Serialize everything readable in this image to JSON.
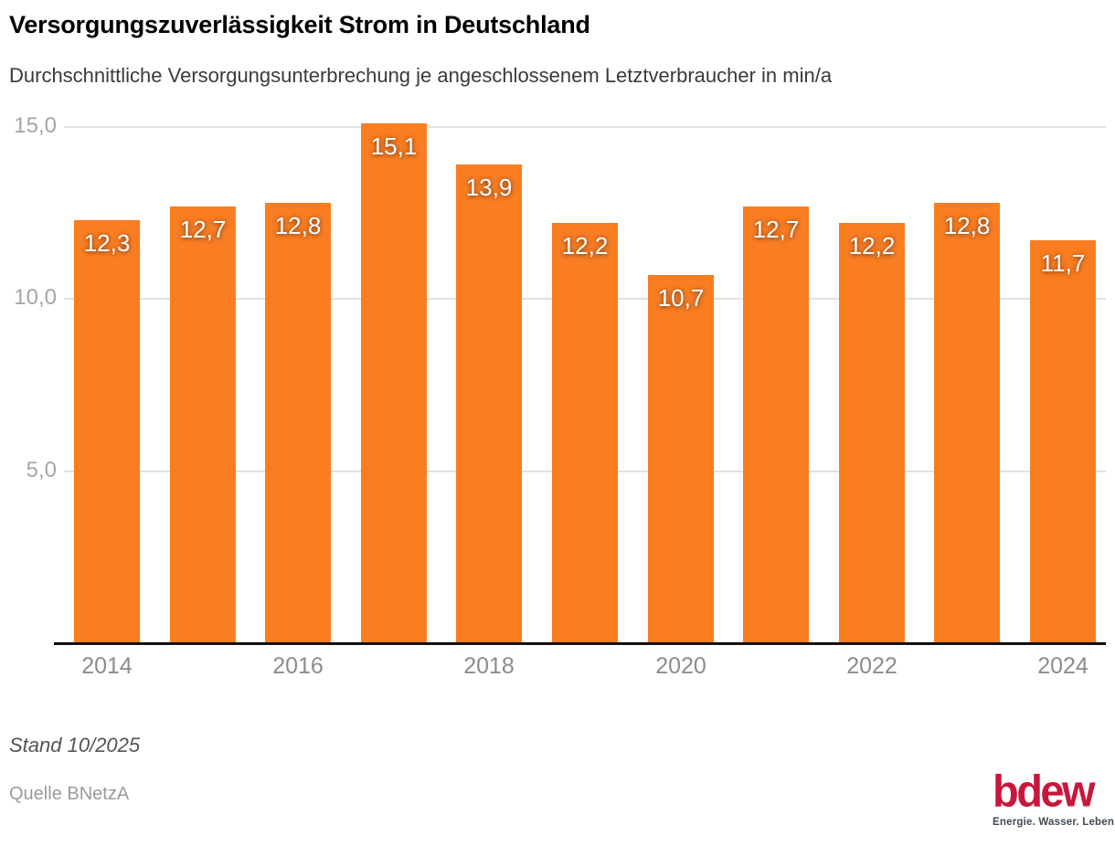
{
  "header": {
    "title": "Versorgungszuverlässigkeit Strom in Deutschland",
    "subtitle": "Durchschnittliche Versorgungsunterbrechung je angeschlossenem Letztverbraucher in min/a"
  },
  "chart_data": {
    "type": "bar",
    "title": "Versorgungszuverlässigkeit Strom in Deutschland",
    "xlabel": "",
    "ylabel": "Durchschnittliche Versorgungsunterbrechung je angeschlossenem Letztverbraucher in min/a",
    "categories": [
      "2014",
      "2015",
      "2016",
      "2017",
      "2018",
      "2019",
      "2020",
      "2021",
      "2022",
      "2023",
      "2024"
    ],
    "values": [
      12.3,
      12.7,
      12.8,
      15.1,
      13.9,
      12.2,
      10.7,
      12.7,
      12.2,
      12.8,
      11.7
    ],
    "value_labels": [
      "12,3",
      "12,7",
      "12,8",
      "15,1",
      "13,9",
      "12,2",
      "10,7",
      "12,7",
      "12,2",
      "12,8",
      "11,7"
    ],
    "ylim": [
      0,
      15.5
    ],
    "yticks": [
      {
        "value": 5,
        "label": "5,0"
      },
      {
        "value": 10,
        "label": "10,0"
      },
      {
        "value": 15,
        "label": "15,0"
      }
    ],
    "xticks": [
      {
        "index": 0,
        "label": "2014"
      },
      {
        "index": 2,
        "label": "2016"
      },
      {
        "index": 4,
        "label": "2018"
      },
      {
        "index": 6,
        "label": "2020"
      },
      {
        "index": 8,
        "label": "2022"
      },
      {
        "index": 10,
        "label": "2024"
      }
    ],
    "grid": true,
    "legend_position": "none",
    "bar_color": "#FA7D22",
    "gridline_color": "#E1E1E1",
    "axis_color": "#111111",
    "label_color": "#FFFFFF"
  },
  "footer": {
    "stand": "Stand 10/2025",
    "source": "Quelle BNetzA"
  },
  "logo": {
    "text": "bdew",
    "tagline": "Energie. Wasser. Leben.",
    "color": "#C9163B",
    "tagline_color": "#3E4A56"
  }
}
